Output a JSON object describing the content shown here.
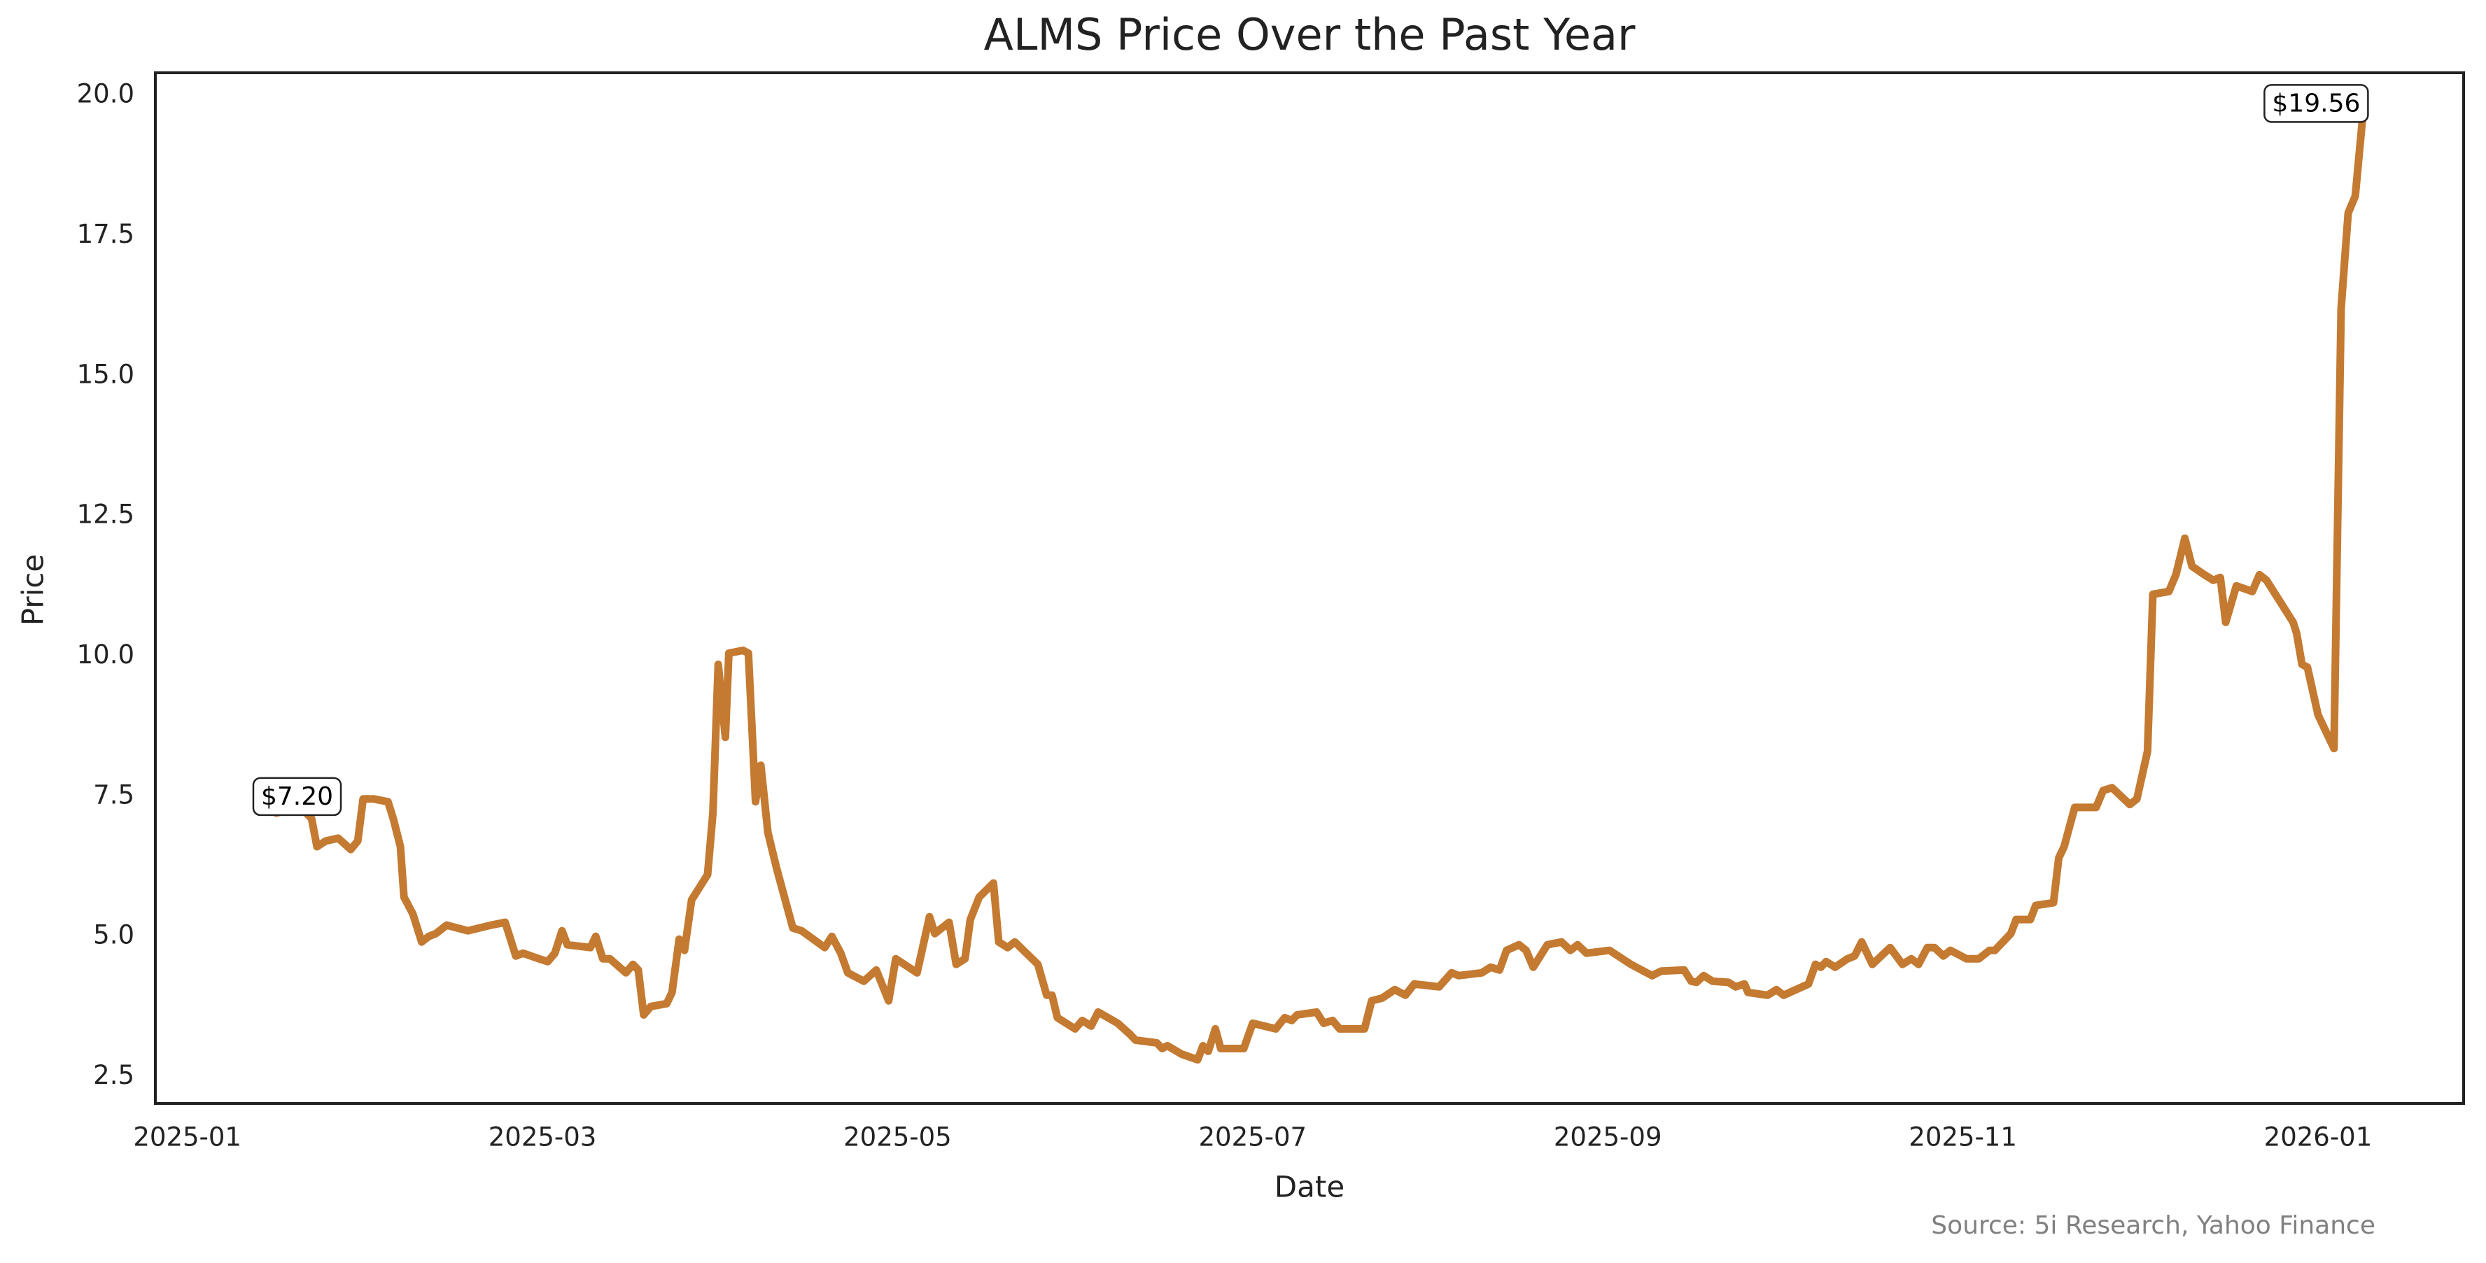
{
  "chart_data": {
    "type": "line",
    "title": "ALMS Price Over the Past Year",
    "xlabel": "Date",
    "ylabel": "Price",
    "source": "Source: 5i Research, Yahoo Finance",
    "color": "#c47a31",
    "grid": false,
    "xlim": [
      -0.18,
      12.82
    ],
    "ylim": [
      2.02,
      20.4
    ],
    "xticks": [
      {
        "value": 0,
        "label": "2025-01"
      },
      {
        "value": 2,
        "label": "2025-03"
      },
      {
        "value": 4,
        "label": "2025-05"
      },
      {
        "value": 6,
        "label": "2025-07"
      },
      {
        "value": 8,
        "label": "2025-09"
      },
      {
        "value": 10,
        "label": "2025-11"
      },
      {
        "value": 12,
        "label": "2026-01"
      }
    ],
    "yticks": [
      2.5,
      {
        "value": 5,
        "label": "5.0"
      },
      7.5,
      {
        "value": 10,
        "label": "10.0"
      },
      12.5,
      {
        "value": 15,
        "label": "15.0"
      },
      17.5,
      {
        "value": 20,
        "label": "20.0"
      }
    ],
    "x": [
      0.5,
      0.64,
      0.7,
      0.73,
      0.78,
      0.85,
      0.92,
      0.96,
      0.99,
      1.05,
      1.13,
      1.16,
      1.2,
      1.22,
      1.27,
      1.32,
      1.36,
      1.4,
      1.46,
      1.58,
      1.71,
      1.79,
      1.85,
      1.89,
      1.98,
      2.03,
      2.07,
      2.11,
      2.14,
      2.27,
      2.3,
      2.34,
      2.38,
      2.47,
      2.51,
      2.54,
      2.57,
      2.61,
      2.7,
      2.73,
      2.77,
      2.8,
      2.84,
      2.93,
      2.96,
      2.99,
      3.03,
      3.05,
      3.13,
      3.16,
      3.2,
      3.23,
      3.27,
      3.32,
      3.41,
      3.46,
      3.59,
      3.63,
      3.68,
      3.72,
      3.81,
      3.88,
      3.95,
      3.99,
      4.11,
      4.18,
      4.21,
      4.29,
      4.33,
      4.38,
      4.41,
      4.46,
      4.54,
      4.57,
      4.62,
      4.66,
      4.79,
      4.84,
      4.87,
      4.9,
      5.0,
      5.04,
      5.09,
      5.13,
      5.24,
      5.31,
      5.34,
      5.46,
      5.49,
      5.52,
      5.6,
      5.69,
      5.72,
      5.75,
      5.79,
      5.82,
      5.95,
      6.0,
      6.13,
      6.18,
      6.22,
      6.25,
      6.36,
      6.4,
      6.45,
      6.49,
      6.63,
      6.67,
      6.73,
      6.8,
      6.86,
      6.91,
      7.05,
      7.12,
      7.16,
      7.29,
      7.34,
      7.39,
      7.43,
      7.5,
      7.54,
      7.58,
      7.66,
      7.74,
      7.79,
      7.83,
      7.88,
      8.01,
      8.13,
      8.25,
      8.3,
      8.43,
      8.47,
      8.5,
      8.54,
      8.59,
      8.68,
      8.72,
      8.77,
      8.79,
      8.9,
      8.95,
      8.99,
      9.13,
      9.17,
      9.2,
      9.23,
      9.28,
      9.35,
      9.39,
      9.43,
      9.49,
      9.59,
      9.66,
      9.71,
      9.75,
      9.8,
      9.84,
      9.89,
      9.93,
      10.02,
      10.09,
      10.15,
      10.18,
      10.27,
      10.3,
      10.38,
      10.41,
      10.51,
      10.54,
      10.57,
      10.63,
      10.75,
      10.79,
      10.84,
      10.94,
      10.98,
      11.04,
      11.07,
      11.16,
      11.2,
      11.25,
      11.29,
      11.36,
      11.41,
      11.45,
      11.48,
      11.54,
      11.63,
      11.67,
      11.71,
      11.79,
      11.86,
      11.88,
      11.91,
      11.94,
      12.0,
      12.09,
      12.13,
      12.17,
      12.21,
      12.25
    ],
    "values": [
      7.2,
      7.3,
      7.1,
      6.6,
      6.7,
      6.75,
      6.55,
      6.7,
      7.45,
      7.45,
      7.4,
      7.1,
      6.6,
      5.7,
      5.4,
      4.9,
      5.0,
      5.05,
      5.2,
      5.1,
      5.2,
      5.25,
      4.65,
      4.7,
      4.6,
      4.55,
      4.7,
      5.1,
      4.85,
      4.8,
      5.0,
      4.6,
      4.6,
      4.35,
      4.5,
      4.4,
      3.6,
      3.75,
      3.8,
      4.0,
      4.95,
      4.75,
      5.65,
      6.1,
      7.2,
      9.85,
      8.55,
      10.05,
      10.1,
      10.05,
      7.4,
      8.05,
      6.85,
      6.2,
      5.15,
      5.1,
      4.8,
      5.0,
      4.7,
      4.35,
      4.2,
      4.4,
      3.85,
      4.6,
      4.35,
      5.35,
      5.05,
      5.25,
      4.5,
      4.6,
      5.3,
      5.7,
      5.95,
      4.9,
      4.8,
      4.9,
      4.5,
      3.95,
      3.95,
      3.55,
      3.35,
      3.5,
      3.4,
      3.65,
      3.45,
      3.25,
      3.15,
      3.1,
      3.0,
      3.05,
      2.9,
      2.8,
      3.05,
      2.95,
      3.35,
      3.0,
      3.0,
      3.45,
      3.35,
      3.55,
      3.5,
      3.6,
      3.65,
      3.45,
      3.5,
      3.35,
      3.35,
      3.85,
      3.9,
      4.05,
      3.95,
      4.15,
      4.1,
      4.35,
      4.3,
      4.35,
      4.45,
      4.4,
      4.75,
      4.85,
      4.75,
      4.45,
      4.85,
      4.9,
      4.75,
      4.85,
      4.7,
      4.75,
      4.5,
      4.3,
      4.38,
      4.4,
      4.2,
      4.18,
      4.3,
      4.2,
      4.18,
      4.1,
      4.15,
      4.0,
      3.95,
      4.05,
      3.95,
      4.15,
      4.5,
      4.45,
      4.55,
      4.45,
      4.6,
      4.65,
      4.9,
      4.5,
      4.8,
      4.5,
      4.6,
      4.5,
      4.8,
      4.8,
      4.65,
      4.75,
      4.6,
      4.6,
      4.75,
      4.75,
      5.05,
      5.3,
      5.3,
      5.55,
      5.6,
      6.4,
      6.6,
      7.3,
      7.3,
      7.6,
      7.65,
      7.35,
      7.45,
      8.3,
      11.1,
      11.15,
      11.45,
      12.1,
      11.6,
      11.45,
      11.35,
      11.4,
      10.6,
      11.25,
      11.15,
      11.45,
      11.35,
      10.95,
      10.6,
      10.4,
      9.85,
      9.8,
      8.95,
      8.35,
      16.2,
      17.9,
      18.2,
      19.56
    ],
    "value_labels": [
      "$7.20",
      null,
      null,
      null,
      null,
      null,
      null,
      null,
      null,
      null,
      null,
      null,
      null,
      null,
      null,
      null,
      null,
      null,
      null,
      null,
      null,
      null,
      null,
      null,
      null,
      null,
      null,
      null,
      null,
      null,
      null,
      null,
      null,
      null,
      null,
      null,
      null,
      null,
      null,
      null,
      null,
      null,
      null,
      null,
      null,
      null,
      null,
      null,
      null,
      null,
      null,
      null,
      null,
      null,
      null,
      null,
      null,
      null,
      null,
      null,
      null,
      null,
      null,
      null,
      null,
      null,
      null,
      null,
      null,
      null,
      null,
      null,
      null,
      null,
      null,
      null,
      null,
      null,
      null,
      null,
      null,
      null,
      null,
      null,
      null,
      null,
      null,
      null,
      null,
      null,
      null,
      null,
      null,
      null,
      null,
      null,
      null,
      null,
      null,
      null,
      null,
      null,
      null,
      null,
      null,
      null,
      null,
      null,
      null,
      null,
      null,
      null,
      null,
      null,
      null,
      null,
      null,
      null,
      null,
      null,
      null,
      null,
      null,
      null,
      null,
      null,
      null,
      null,
      null,
      null,
      null,
      null,
      null,
      null,
      null,
      null,
      null,
      null,
      null,
      null,
      null,
      null,
      null,
      null,
      null,
      null,
      null,
      null,
      null,
      null,
      null,
      null,
      null,
      null,
      null,
      null,
      null,
      null,
      null,
      null,
      null,
      null,
      null,
      null,
      null,
      null,
      null,
      null,
      null,
      null,
      null,
      null,
      null,
      null,
      null,
      null,
      null,
      null,
      null,
      null,
      null,
      null,
      null,
      null,
      null,
      null,
      null,
      null,
      null,
      null,
      null,
      null,
      null,
      null,
      null,
      null,
      null,
      null,
      null,
      null,
      null,
      "$19.56"
    ]
  }
}
